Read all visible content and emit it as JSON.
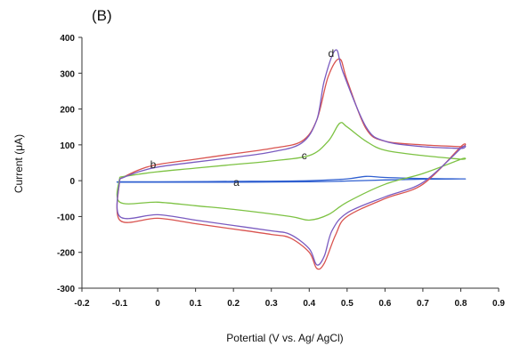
{
  "chart_data": {
    "type": "line",
    "panel_label": "(B)",
    "title": "",
    "xlabel": "Potertial (V vs. Ag/ AgCl)",
    "ylabel": "Current (μA)",
    "xlim": [
      -0.2,
      0.9
    ],
    "ylim": [
      -300,
      400
    ],
    "xticks": [
      -0.2,
      -0.1,
      0,
      0.1,
      0.2,
      0.3,
      0.4,
      0.5,
      0.6,
      0.7,
      0.8,
      0.9
    ],
    "xtick_labels": [
      "-0.2",
      "-0.1",
      "0",
      "0.1",
      "0.2",
      "0.3",
      "0.4",
      "0.5",
      "0.6",
      "0.7",
      "0.8",
      "0.9"
    ],
    "yticks": [
      400,
      300,
      200,
      100,
      0,
      -100,
      -200,
      -300
    ],
    "ytick_labels": [
      "400",
      "300",
      "200",
      "100",
      "0",
      "-100",
      "-200",
      "-300"
    ],
    "grid": false,
    "legend": "none",
    "series": [
      {
        "label": "a",
        "color": "#2f5fd0",
        "forward": {
          "x": [
            -0.1,
            0.0,
            0.2,
            0.4,
            0.5,
            0.55,
            0.6,
            0.7,
            0.8
          ],
          "y": [
            -3,
            -3,
            -2,
            0,
            5,
            12,
            9,
            6,
            5
          ]
        },
        "reverse": {
          "x": [
            0.8,
            0.7,
            0.6,
            0.5,
            0.4,
            0.2,
            0.0,
            -0.1
          ],
          "y": [
            5,
            4,
            2,
            -1,
            -3,
            -4,
            -4,
            -4
          ]
        }
      },
      {
        "label": "b",
        "color": "#d9534f",
        "forward": {
          "x": [
            -0.1,
            -0.05,
            0.0,
            0.1,
            0.2,
            0.3,
            0.38,
            0.42,
            0.45,
            0.48,
            0.5,
            0.55,
            0.6,
            0.7,
            0.8
          ],
          "y": [
            5,
            30,
            45,
            60,
            75,
            90,
            110,
            170,
            290,
            340,
            280,
            145,
            110,
            100,
            95
          ]
        },
        "reverse": {
          "x": [
            0.8,
            0.7,
            0.6,
            0.5,
            0.47,
            0.44,
            0.42,
            0.4,
            0.35,
            0.3,
            0.2,
            0.1,
            0.0,
            -0.1
          ],
          "y": [
            95,
            -10,
            -50,
            -100,
            -150,
            -230,
            -245,
            -200,
            -160,
            -150,
            -135,
            -120,
            -105,
            -110
          ]
        }
      },
      {
        "label": "c",
        "color": "#7dc243",
        "forward": {
          "x": [
            -0.1,
            -0.05,
            0.0,
            0.1,
            0.2,
            0.3,
            0.4,
            0.45,
            0.48,
            0.5,
            0.55,
            0.6,
            0.7,
            0.8
          ],
          "y": [
            10,
            18,
            25,
            35,
            45,
            55,
            70,
            110,
            160,
            150,
            110,
            85,
            70,
            60
          ]
        },
        "reverse": {
          "x": [
            0.8,
            0.7,
            0.6,
            0.5,
            0.45,
            0.4,
            0.35,
            0.2,
            0.1,
            0.0,
            -0.1
          ],
          "y": [
            60,
            20,
            -10,
            -60,
            -95,
            -110,
            -100,
            -80,
            -70,
            -60,
            -60
          ]
        }
      },
      {
        "label": "d",
        "color": "#7a5bc0",
        "forward": {
          "x": [
            -0.1,
            -0.05,
            0.0,
            0.1,
            0.2,
            0.3,
            0.38,
            0.42,
            0.44,
            0.47,
            0.49,
            0.55,
            0.6,
            0.7,
            0.8
          ],
          "y": [
            5,
            25,
            38,
            52,
            65,
            80,
            105,
            170,
            280,
            365,
            300,
            150,
            110,
            95,
            90
          ]
        },
        "reverse": {
          "x": [
            0.8,
            0.7,
            0.6,
            0.5,
            0.46,
            0.44,
            0.42,
            0.4,
            0.35,
            0.3,
            0.2,
            0.1,
            0.0,
            -0.1
          ],
          "y": [
            90,
            -5,
            -45,
            -90,
            -140,
            -210,
            -235,
            -190,
            -150,
            -140,
            -125,
            -110,
            -95,
            -100
          ]
        }
      }
    ]
  }
}
